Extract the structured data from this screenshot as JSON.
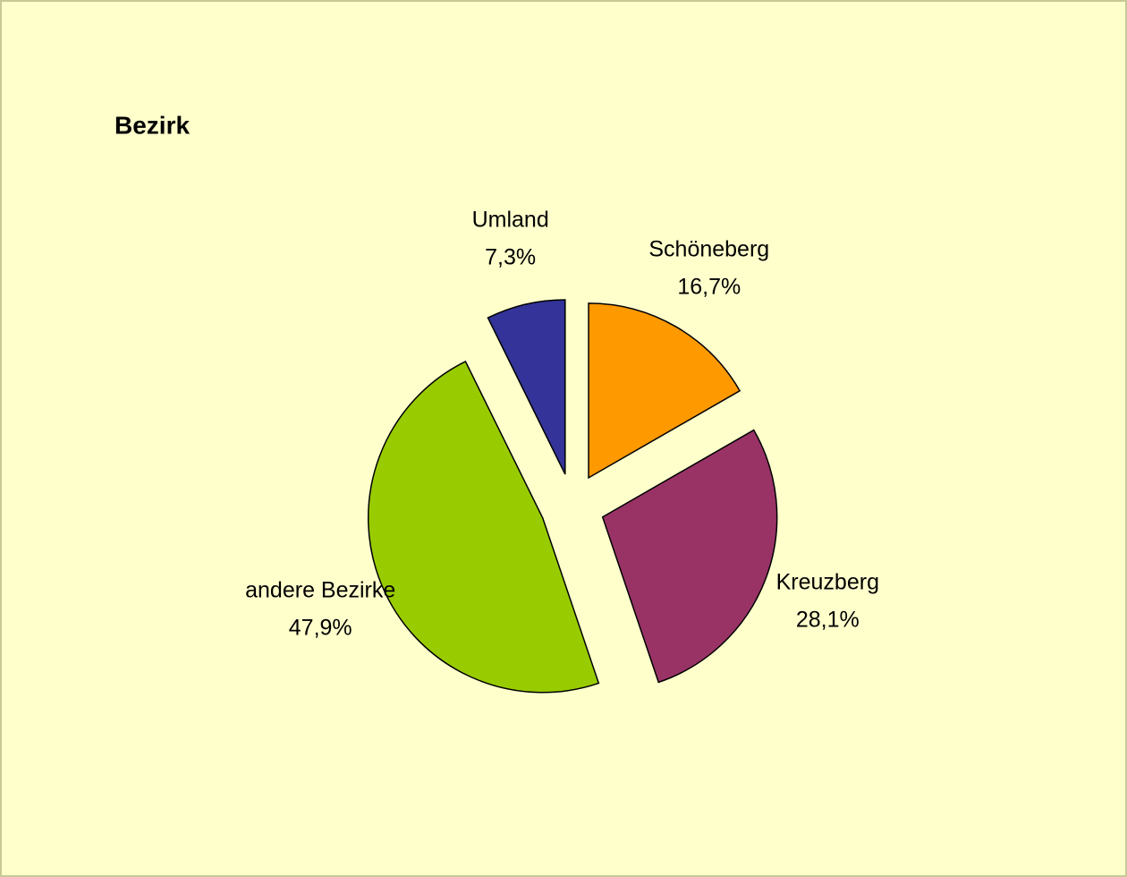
{
  "chart_data": {
    "type": "pie",
    "title": "Bezirk",
    "categories": [
      "Schöneberg",
      "Kreuzberg",
      "andere Bezirke",
      "Umland"
    ],
    "values": [
      16.7,
      28.1,
      47.9,
      7.3
    ],
    "value_labels": [
      "16,7%",
      "28,1%",
      "47,9%",
      "7,3%"
    ],
    "colors": [
      "#ff9900",
      "#993366",
      "#99cc00",
      "#333399"
    ]
  }
}
